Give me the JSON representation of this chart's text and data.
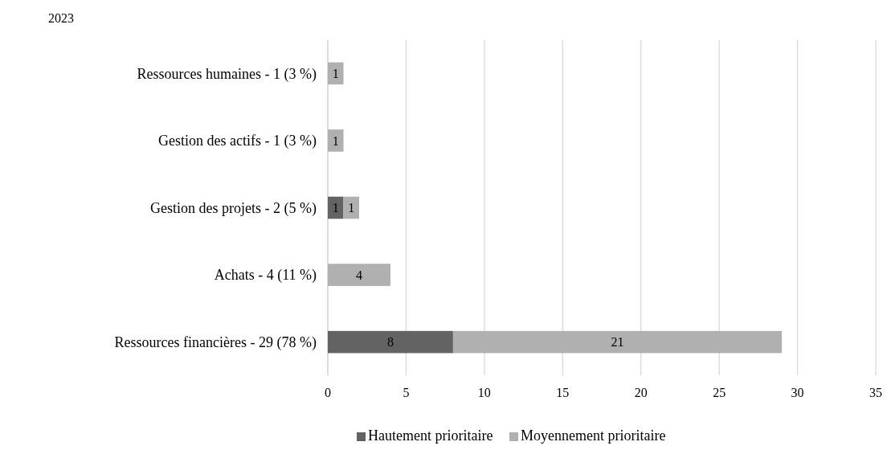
{
  "chart_data": {
    "type": "bar",
    "orientation": "horizontal",
    "stacked": true,
    "title": "2023",
    "categories": [
      "Ressources humaines - 1 (3 %)",
      "Gestion des actifs - 1 (3 %)",
      "Gestion des projets - 2 (5 %)",
      "Achats - 4 (11 %)",
      "Ressources financières - 29 (78 %)"
    ],
    "series": [
      {
        "name": "Hautement prioritaire",
        "color": "#636363",
        "values": [
          null,
          null,
          1,
          null,
          8
        ]
      },
      {
        "name": "Moyennement prioritaire",
        "color": "#b0b0b0",
        "values": [
          1,
          1,
          1,
          4,
          21
        ]
      }
    ],
    "xlim": [
      0,
      35
    ],
    "xticks": [
      0,
      5,
      10,
      15,
      20,
      25,
      30,
      35
    ],
    "grid": "x",
    "legend": "bottom",
    "data_labels": true
  }
}
